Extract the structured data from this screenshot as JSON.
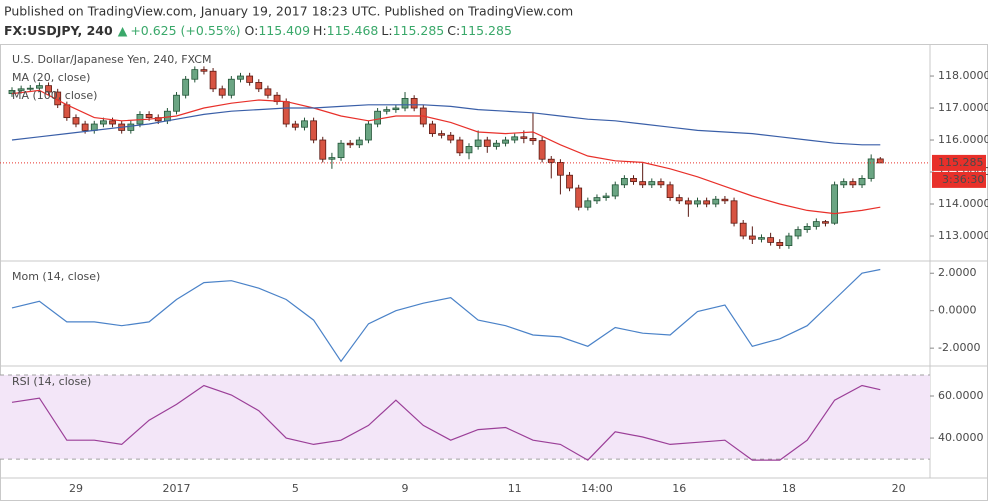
{
  "header": {
    "publish": "Published on TradingView.com, January 19, 2017 18:23 UTC. Published on TradingView.com",
    "symbol": "FX:USDJPY, 240",
    "change": "+0.625 (+0.55%)",
    "ohlc": [
      {
        "label": "O:",
        "value": "115.409"
      },
      {
        "label": "H:",
        "value": "115.468"
      },
      {
        "label": "L:",
        "value": "115.285"
      },
      {
        "label": "C:",
        "value": "115.285"
      }
    ]
  },
  "chart_data": [
    {
      "type": "candlestick",
      "title": "U.S. Dollar/Japanese Yen, 240, FXCM",
      "categories": [
        null,
        null,
        null,
        null,
        null,
        null,
        null,
        "29",
        null,
        null,
        null,
        null,
        null,
        null,
        null,
        null,
        null,
        null,
        "2017",
        null,
        null,
        null,
        null,
        null,
        null,
        null,
        null,
        null,
        null,
        null,
        null,
        "5",
        null,
        null,
        null,
        null,
        null,
        null,
        null,
        null,
        null,
        null,
        null,
        "9",
        null,
        null,
        null,
        null,
        null,
        null,
        null,
        null,
        null,
        null,
        null,
        "11",
        null,
        null,
        null,
        null,
        null,
        null,
        null,
        null,
        "14:00",
        null,
        null,
        null,
        null,
        null,
        null,
        null,
        null,
        "16",
        null,
        null,
        null,
        null,
        null,
        null,
        null,
        null,
        null,
        null,
        null,
        "18",
        null,
        null,
        null,
        null,
        null,
        null,
        null,
        null,
        null,
        null,
        null,
        "20"
      ],
      "open": [
        117.45,
        117.55,
        117.6,
        117.62,
        117.7,
        117.5,
        117.1,
        116.7,
        116.5,
        116.3,
        116.5,
        116.6,
        116.5,
        116.3,
        116.5,
        116.8,
        116.7,
        116.6,
        116.9,
        117.4,
        117.9,
        118.2,
        118.15,
        117.6,
        117.4,
        117.9,
        118.0,
        117.8,
        117.6,
        117.4,
        117.2,
        116.5,
        116.4,
        116.6,
        116.0,
        115.4,
        115.45,
        115.9,
        115.85,
        116.0,
        116.5,
        116.9,
        116.95,
        117.0,
        117.3,
        117.0,
        116.5,
        116.2,
        116.15,
        116.0,
        115.6,
        115.8,
        116.0,
        115.8,
        115.9,
        116.0,
        116.1,
        116.05,
        115.98,
        115.4,
        115.3,
        114.9,
        114.5,
        113.9,
        114.1,
        114.2,
        114.25,
        114.6,
        114.8,
        114.7,
        114.6,
        114.7,
        114.6,
        114.2,
        114.1,
        114.0,
        114.1,
        114.0,
        114.15,
        114.1,
        113.4,
        113.0,
        112.9,
        112.95,
        112.8,
        112.7,
        113.0,
        113.2,
        113.3,
        113.45,
        113.4,
        114.6,
        114.7,
        114.6,
        114.8,
        115.409,
        null,
        null
      ],
      "high": [
        117.65,
        117.7,
        117.72,
        117.8,
        117.8,
        117.6,
        117.2,
        116.8,
        116.6,
        116.6,
        116.7,
        116.7,
        116.6,
        116.6,
        116.9,
        116.9,
        116.8,
        117.0,
        117.5,
        118.0,
        118.3,
        118.3,
        118.25,
        117.7,
        118.0,
        118.1,
        118.1,
        117.9,
        117.7,
        117.5,
        117.3,
        116.6,
        116.7,
        116.7,
        116.1,
        115.6,
        116.0,
        116.0,
        116.1,
        116.6,
        117.0,
        117.05,
        117.1,
        117.5,
        117.4,
        117.1,
        116.6,
        116.3,
        116.25,
        116.1,
        115.9,
        116.3,
        116.1,
        116.0,
        116.1,
        116.2,
        116.3,
        116.85,
        116.1,
        115.5,
        115.4,
        115.0,
        114.6,
        114.2,
        114.3,
        114.35,
        114.7,
        114.9,
        114.9,
        115.3,
        114.8,
        114.8,
        114.7,
        114.3,
        114.2,
        114.2,
        114.2,
        114.25,
        114.25,
        114.2,
        113.5,
        113.3,
        113.05,
        113.1,
        112.9,
        113.1,
        113.3,
        113.4,
        113.55,
        113.5,
        114.7,
        114.8,
        114.8,
        114.9,
        115.55,
        115.468,
        null,
        null
      ],
      "low": [
        117.35,
        117.45,
        117.5,
        117.52,
        117.4,
        117.0,
        116.6,
        116.4,
        116.2,
        116.2,
        116.4,
        116.4,
        116.2,
        116.2,
        116.4,
        116.6,
        116.5,
        116.5,
        116.8,
        117.3,
        117.8,
        118.05,
        117.5,
        117.3,
        117.3,
        117.8,
        117.7,
        117.5,
        117.3,
        117.1,
        116.4,
        116.3,
        116.3,
        115.9,
        115.3,
        115.1,
        115.35,
        115.75,
        115.75,
        115.9,
        116.4,
        116.8,
        116.85,
        116.9,
        116.9,
        116.4,
        116.1,
        116.05,
        115.9,
        115.5,
        115.4,
        115.7,
        115.6,
        115.7,
        115.8,
        115.9,
        115.9,
        115.85,
        115.3,
        114.8,
        114.3,
        114.4,
        113.8,
        113.8,
        114.0,
        114.1,
        114.15,
        114.5,
        114.6,
        114.5,
        114.5,
        114.5,
        114.1,
        114.0,
        113.6,
        113.9,
        113.9,
        113.9,
        114.0,
        113.3,
        112.9,
        112.75,
        112.8,
        112.7,
        112.6,
        112.6,
        112.9,
        113.1,
        113.2,
        113.3,
        113.35,
        114.5,
        114.5,
        114.5,
        114.7,
        115.285,
        null,
        null
      ],
      "close": [
        117.55,
        117.6,
        117.62,
        117.7,
        117.5,
        117.1,
        116.7,
        116.5,
        116.3,
        116.5,
        116.6,
        116.5,
        116.3,
        116.5,
        116.8,
        116.7,
        116.6,
        116.9,
        117.4,
        117.9,
        118.2,
        118.15,
        117.6,
        117.4,
        117.9,
        118.0,
        117.8,
        117.6,
        117.4,
        117.2,
        116.5,
        116.4,
        116.6,
        116.0,
        115.4,
        115.45,
        115.9,
        115.85,
        116.0,
        116.5,
        116.9,
        116.95,
        117.0,
        117.3,
        117.0,
        116.5,
        116.2,
        116.15,
        116.0,
        115.6,
        115.8,
        116.0,
        115.8,
        115.9,
        116.0,
        116.1,
        116.05,
        115.98,
        115.4,
        115.3,
        114.9,
        114.5,
        113.9,
        114.1,
        114.2,
        114.25,
        114.6,
        114.8,
        114.7,
        114.6,
        114.7,
        114.6,
        114.2,
        114.1,
        114.0,
        114.1,
        114.0,
        114.15,
        114.1,
        113.4,
        113.0,
        112.9,
        112.95,
        112.8,
        112.7,
        113.0,
        113.2,
        113.3,
        113.45,
        113.4,
        114.6,
        114.7,
        114.6,
        114.8,
        115.409,
        115.285,
        null,
        null
      ],
      "up_color": "#6ba583",
      "down_color": "#d75442",
      "up_border": "#225437",
      "down_border": "#5b1a13",
      "series": [
        {
          "name": "MA (20, close)",
          "color": "#e8302a",
          "x": [
            0,
            3,
            6,
            9,
            12,
            15,
            18,
            21,
            24,
            27,
            30,
            33,
            36,
            39,
            42,
            45,
            48,
            51,
            54,
            57,
            60,
            63,
            66,
            69,
            72,
            75,
            78,
            81,
            84,
            87,
            90,
            93,
            95
          ],
          "values": [
            117.45,
            117.55,
            117.1,
            116.7,
            116.6,
            116.65,
            116.75,
            117.0,
            117.15,
            117.25,
            117.2,
            117.0,
            116.75,
            116.6,
            116.75,
            116.75,
            116.55,
            116.25,
            116.2,
            116.25,
            115.85,
            115.5,
            115.35,
            115.3,
            115.1,
            114.85,
            114.55,
            114.25,
            114.0,
            113.8,
            113.7,
            113.8,
            113.9
          ]
        },
        {
          "name": "MA (100, close)",
          "color": "#3a5fa8",
          "x": [
            0,
            3,
            6,
            9,
            12,
            15,
            18,
            21,
            24,
            27,
            30,
            33,
            36,
            39,
            42,
            45,
            48,
            51,
            54,
            57,
            60,
            63,
            66,
            69,
            72,
            75,
            78,
            81,
            84,
            87,
            90,
            93,
            95
          ],
          "values": [
            116.0,
            116.1,
            116.2,
            116.3,
            116.4,
            116.5,
            116.65,
            116.8,
            116.9,
            116.95,
            117.0,
            117.0,
            117.05,
            117.1,
            117.1,
            117.1,
            117.05,
            116.95,
            116.9,
            116.85,
            116.75,
            116.65,
            116.6,
            116.5,
            116.4,
            116.3,
            116.25,
            116.2,
            116.1,
            116.0,
            115.9,
            115.85,
            115.85
          ]
        }
      ],
      "ylim": [
        112.25,
        118.97
      ],
      "yticks": [
        {
          "value": 113,
          "label": "113.0000"
        },
        {
          "value": 114,
          "label": "114.0000"
        },
        {
          "value": 115,
          "label": "115.0000"
        },
        {
          "value": 116,
          "label": "116.0000"
        },
        {
          "value": 117,
          "label": "117.0000"
        },
        {
          "value": 118,
          "label": "118.0000"
        }
      ],
      "last_price": 115.285,
      "last_color": "#e8302a",
      "countdown": "3:36:30"
    },
    {
      "type": "line",
      "ylim": [
        -2.9,
        2.6
      ],
      "yticks": [
        {
          "value": -2,
          "label": "-2.0000"
        },
        {
          "value": 0,
          "label": "0.0000"
        },
        {
          "value": 2,
          "label": "2.0000"
        }
      ],
      "series": [
        {
          "name": "Mom (14, close)",
          "color": "#4a82c8",
          "x": [
            0,
            3,
            6,
            9,
            12,
            15,
            18,
            21,
            24,
            27,
            30,
            33,
            36,
            39,
            42,
            45,
            48,
            51,
            54,
            57,
            60,
            63,
            66,
            69,
            72,
            75,
            78,
            81,
            84,
            87,
            90,
            93,
            95
          ],
          "values": [
            0.15,
            0.5,
            -0.6,
            -0.6,
            -0.8,
            -0.6,
            0.6,
            1.5,
            1.6,
            1.2,
            0.6,
            -0.5,
            -2.7,
            -0.7,
            0.0,
            0.4,
            0.7,
            -0.5,
            -0.8,
            -1.3,
            -1.4,
            -1.9,
            -0.9,
            -1.2,
            -1.3,
            -0.05,
            0.3,
            -1.9,
            -1.5,
            -0.8,
            0.6,
            2.0,
            2.2
          ]
        }
      ]
    },
    {
      "type": "line",
      "ylim": [
        21,
        73.8
      ],
      "yticks": [
        {
          "value": 40,
          "label": "40.0000"
        },
        {
          "value": 60,
          "label": "60.0000"
        }
      ],
      "band": [
        30,
        70
      ],
      "band_color": "#f3e6f8",
      "series": [
        {
          "name": "RSI (14, close)",
          "color": "#9b3f98",
          "x": [
            0,
            3,
            6,
            9,
            12,
            15,
            18,
            21,
            24,
            27,
            30,
            33,
            36,
            39,
            42,
            45,
            48,
            51,
            54,
            57,
            60,
            63,
            66,
            69,
            72,
            75,
            78,
            81,
            84,
            87,
            90,
            93,
            95
          ],
          "values": [
            57,
            59,
            39,
            39,
            37,
            48.5,
            56,
            65,
            60.5,
            53,
            40,
            37,
            39,
            46,
            58,
            46,
            39,
            44,
            45,
            39,
            37,
            29.5,
            43,
            40.5,
            37,
            38,
            39,
            29.5,
            29.5,
            39,
            58,
            65,
            63
          ]
        }
      ]
    }
  ]
}
